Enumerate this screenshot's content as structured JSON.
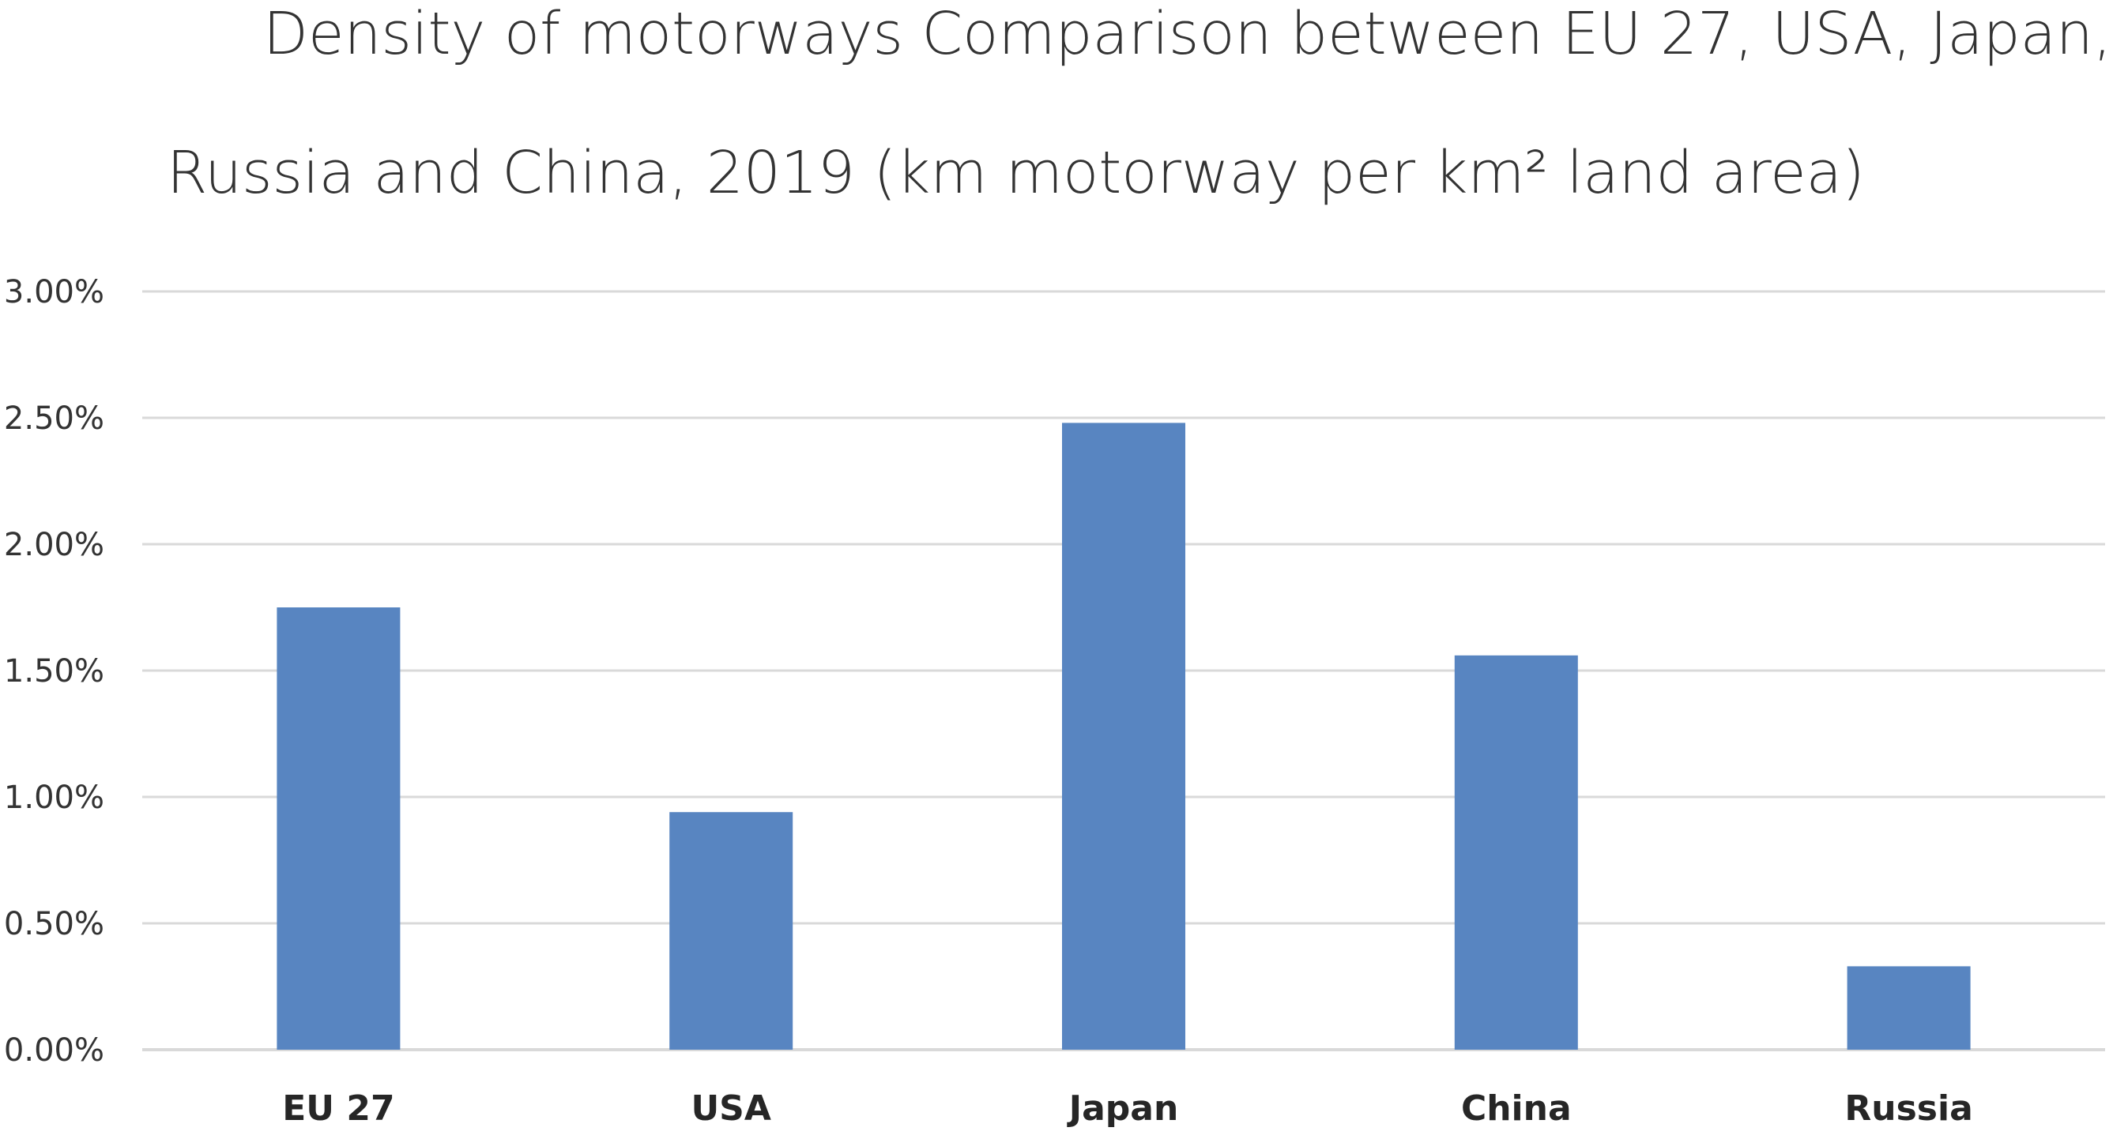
{
  "chart_data": {
    "type": "bar",
    "title_line_1": "Density of motorways Comparison between EU 27, USA, Japan,",
    "title_line_2": "Russia and China, 2019 (km motorway per km² land area)",
    "xlabel": "",
    "ylabel": "",
    "categories": [
      "EU 27",
      "USA",
      "Japan",
      "China",
      "Russia"
    ],
    "values": [
      1.75,
      0.94,
      2.48,
      1.56,
      0.33
    ],
    "value_unit": "%",
    "ylim": [
      0,
      3
    ],
    "yticks": [
      0,
      0.5,
      1,
      1.5,
      2,
      2.5,
      3
    ],
    "ytick_labels": [
      "0.00%",
      "0.50%",
      "1.00%",
      "1.50%",
      "2.00%",
      "2.50%",
      "3.00%"
    ],
    "grid": true,
    "legend": "none",
    "bar_color": "#5885C1",
    "grid_color": "#D9D9D9"
  }
}
